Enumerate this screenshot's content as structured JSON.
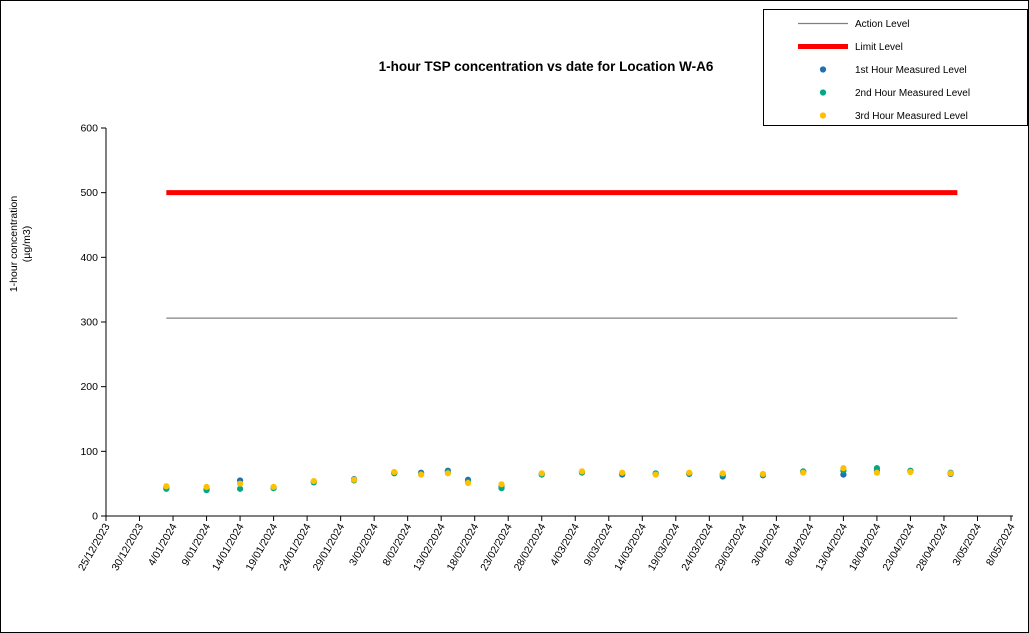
{
  "page": {
    "background": "#ffffff",
    "border_color": "#000000"
  },
  "chart_data": {
    "type": "scatter",
    "title": "1-hour TSP concentration vs date for Location  W-A6",
    "ylabel_line1": "1-hour concentration",
    "ylabel_line2": "(µg/m3)",
    "ylim": [
      0,
      600
    ],
    "ytick_interval": 100,
    "ytick_labels": [
      "0",
      "100",
      "200",
      "300",
      "400",
      "500",
      "600"
    ],
    "x_axis_start": "25/12/2023",
    "x_axis_end": "8/05/2024",
    "xtick_labels": [
      "25/12/2023",
      "30/12/2023",
      "4/01/2024",
      "9/01/2024",
      "14/01/2024",
      "19/01/2024",
      "24/01/2024",
      "29/01/2024",
      "3/02/2024",
      "8/02/2024",
      "13/02/2024",
      "18/02/2024",
      "23/02/2024",
      "28/02/2024",
      "4/03/2024",
      "9/03/2024",
      "14/03/2024",
      "19/03/2024",
      "24/03/2024",
      "29/03/2024",
      "3/04/2024",
      "8/04/2024",
      "13/04/2024",
      "18/04/2024",
      "23/04/2024",
      "28/04/2024",
      "3/05/2024",
      "8/05/2024"
    ],
    "grid": false,
    "legend_position": "top-right",
    "reference_lines": [
      {
        "label": "Action Level",
        "value": 306,
        "color": "#808080",
        "stroke_width": 1.2,
        "start": "3/01/2024",
        "end": "30/04/2024"
      },
      {
        "label": "Limit Level",
        "value": 500,
        "color": "#ff0000",
        "stroke_width": 5,
        "start": "3/01/2024",
        "end": "30/04/2024"
      }
    ],
    "dates": [
      "3/01/2024",
      "9/01/2024",
      "14/01/2024",
      "19/01/2024",
      "25/01/2024",
      "31/01/2024",
      "6/02/2024",
      "10/02/2024",
      "14/02/2024",
      "17/02/2024",
      "22/02/2024",
      "28/02/2024",
      "5/03/2024",
      "11/03/2024",
      "16/03/2024",
      "21/03/2024",
      "26/03/2024",
      "1/04/2024",
      "7/04/2024",
      "13/04/2024",
      "18/04/2024",
      "23/04/2024",
      "29/04/2024"
    ],
    "series": [
      {
        "name": "1st Hour Measured Level",
        "color": "#1f6fb5",
        "marker": "dot",
        "values": [
          44,
          41,
          55,
          44,
          53,
          57,
          67,
          67,
          70,
          56,
          45,
          65,
          68,
          64,
          65,
          65,
          61,
          63,
          68,
          64,
          70,
          69,
          65
        ]
      },
      {
        "name": "2nd Hour Measured Level",
        "color": "#00a887",
        "marker": "dot",
        "values": [
          42,
          40,
          42,
          43,
          52,
          55,
          66,
          65,
          68,
          53,
          43,
          64,
          67,
          66,
          66,
          66,
          64,
          64,
          69,
          70,
          74,
          70,
          67
        ]
      },
      {
        "name": "3rd Hour Measured Level",
        "color": "#ffc000",
        "marker": "dot",
        "values": [
          46,
          45,
          50,
          45,
          54,
          56,
          68,
          64,
          66,
          51,
          49,
          66,
          69,
          67,
          64,
          67,
          66,
          65,
          67,
          74,
          67,
          68,
          66
        ]
      }
    ],
    "legend": {
      "items": [
        {
          "label": "Action Level",
          "marker": "thin-line",
          "color": "#808080"
        },
        {
          "label": "Limit Level",
          "marker": "thick-line",
          "color": "#ff0000"
        },
        {
          "label": "1st Hour Measured Level",
          "marker": "dot",
          "color": "#1f6fb5"
        },
        {
          "label": "2nd Hour Measured Level",
          "marker": "dot",
          "color": "#00a887"
        },
        {
          "label": "3rd Hour Measured Level",
          "marker": "dot",
          "color": "#ffc000"
        }
      ]
    }
  }
}
